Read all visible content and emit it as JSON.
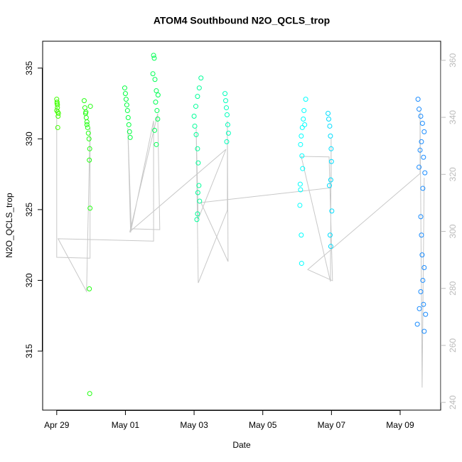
{
  "chart_data": {
    "type": "scatter",
    "title": "ATOM4 Southbound N2O_QCLS_trop",
    "x_label": "Date",
    "y_label": "N2O_QCLS_trop",
    "xlim": [
      -0.41,
      11.18
    ],
    "xticks": [
      {
        "value": 0,
        "label": "Apr 29"
      },
      {
        "value": 2,
        "label": "May 01"
      },
      {
        "value": 4,
        "label": "May 03"
      },
      {
        "value": 6,
        "label": "May 05"
      },
      {
        "value": 8,
        "label": "May 07"
      },
      {
        "value": 10,
        "label": "May 09"
      }
    ],
    "ylim": [
      310.83,
      336.9
    ],
    "yticks": [
      315,
      320,
      325,
      330,
      335
    ],
    "y2lim": [
      237.3,
      366.7
    ],
    "y2ticks": [
      240,
      260,
      280,
      300,
      320,
      340,
      360
    ],
    "series": [
      {
        "type": "line",
        "axis": "y2",
        "color": "#c8c8c8",
        "x": [
          0,
          0,
          0.97,
          0.97,
          0.87,
          0.04,
          2.82,
          2.82,
          2.15,
          2.07,
          2.17,
          3.0,
          2.94,
          2.13,
          4.93,
          4.12,
          4.06,
          4.12,
          4.97,
          4.97,
          4.99,
          4.2,
          7.99,
          7.99,
          7.97,
          7.12,
          7.93,
          8.03,
          7.31,
          10.58,
          10.58,
          10.64,
          10.7
        ],
        "values": [
          343.8,
          290.9,
          290.6,
          336.3,
          278.9,
          297.4,
          296.6,
          338.8,
          299.6,
          336.3,
          300.9,
          300.6,
          341.3,
          299.9,
          328.8,
          304.4,
          336.3,
          281.9,
          307.4,
          338.8,
          289.4,
          310.1,
          315.3,
          332.6,
          282.4,
          326.3,
          326.1,
          282.7,
          286.6,
          320.3,
          342.5,
          245.2,
          318.8
        ]
      },
      {
        "color": "#40ff00",
        "x": [
          0.0,
          0.01,
          0.02,
          0.03,
          0.04,
          0.0,
          0.02,
          0.03,
          0.05,
          0.01
        ],
        "values": [
          332.8,
          332.5,
          332.2,
          331.9,
          331.6,
          332.0,
          332.4,
          330.8,
          331.8,
          332.6
        ]
      },
      {
        "color": "#22ff11",
        "x": [
          0.8,
          0.82,
          0.84,
          0.86,
          0.88,
          0.9,
          0.92,
          0.94,
          0.96,
          0.95,
          0.97,
          0.95,
          0.96,
          0.85,
          0.88,
          0.98
        ],
        "values": [
          332.7,
          332.2,
          331.8,
          331.5,
          331.2,
          330.8,
          330.4,
          330.0,
          329.3,
          328.5,
          325.1,
          319.4,
          312.0,
          331.9,
          331.0,
          332.3
        ]
      },
      {
        "color": "#00ff40",
        "x": [
          1.98,
          2.0,
          2.02,
          2.04,
          2.06,
          2.08,
          2.1,
          2.12,
          2.14
        ],
        "values": [
          333.6,
          333.2,
          332.8,
          332.4,
          332.0,
          331.5,
          331.0,
          330.5,
          330.1
        ]
      },
      {
        "color": "#00ff55",
        "x": [
          2.82,
          2.84,
          2.8,
          2.86,
          2.9,
          2.88,
          2.92,
          2.94,
          2.85,
          2.9,
          2.95
        ],
        "values": [
          335.9,
          335.7,
          334.6,
          334.2,
          333.4,
          332.6,
          332.0,
          331.4,
          330.6,
          329.6,
          333.1
        ]
      },
      {
        "color": "#00ff99",
        "x": [
          4.2,
          4.15,
          4.1,
          4.05,
          4.0,
          4.02,
          4.06,
          4.1,
          4.12,
          4.14,
          4.11,
          4.16,
          4.1,
          4.08
        ],
        "values": [
          334.3,
          333.6,
          333.0,
          332.3,
          331.6,
          330.9,
          330.3,
          329.3,
          328.3,
          326.7,
          326.2,
          325.6,
          324.7,
          324.3
        ]
      },
      {
        "color": "#00ffbb",
        "x": [
          4.9,
          4.92,
          4.94,
          4.96,
          4.98,
          5.0,
          4.95
        ],
        "values": [
          333.2,
          332.7,
          332.2,
          331.7,
          331.0,
          330.4,
          329.8
        ]
      },
      {
        "color": "#00ffff",
        "x": [
          7.25,
          7.2,
          7.18,
          7.15,
          7.12,
          7.1,
          7.14,
          7.16,
          7.09,
          7.1,
          7.08,
          7.12,
          7.13,
          7.22
        ],
        "values": [
          332.8,
          332.0,
          331.4,
          330.8,
          330.2,
          329.6,
          328.8,
          327.9,
          326.8,
          326.4,
          325.3,
          323.2,
          321.2,
          331.0
        ]
      },
      {
        "color": "#00ddff",
        "x": [
          7.9,
          7.92,
          7.95,
          7.97,
          7.99,
          8.0,
          7.98,
          7.94,
          8.01,
          7.96,
          7.98
        ],
        "values": [
          331.8,
          331.4,
          330.9,
          330.2,
          329.3,
          328.4,
          327.1,
          326.7,
          324.9,
          323.2,
          322.4
        ]
      },
      {
        "color": "#1a8cff",
        "x": [
          10.52,
          10.55,
          10.6,
          10.65,
          10.7,
          10.62,
          10.58,
          10.68,
          10.55,
          10.72,
          10.66,
          10.6,
          10.62,
          10.64,
          10.7,
          10.66,
          10.6,
          10.68,
          10.56,
          10.74,
          10.5,
          10.7
        ],
        "values": [
          332.8,
          332.1,
          331.6,
          331.1,
          330.5,
          329.8,
          329.2,
          328.7,
          328.0,
          327.6,
          326.5,
          324.5,
          323.2,
          321.8,
          320.9,
          320.0,
          319.2,
          318.3,
          318.0,
          317.6,
          316.9,
          316.4
        ]
      }
    ]
  }
}
